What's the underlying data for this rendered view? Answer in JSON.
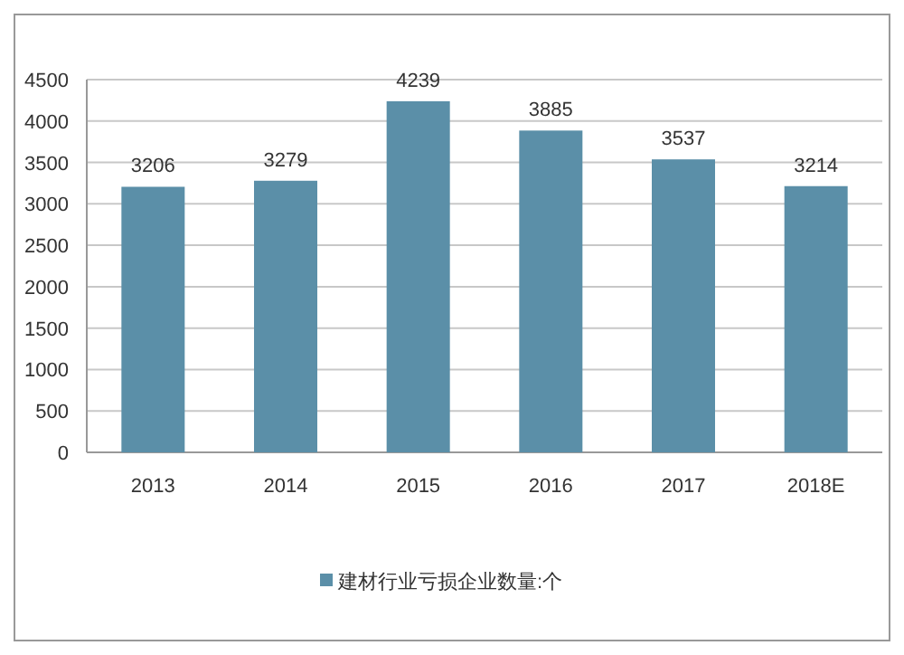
{
  "chart_data": {
    "type": "bar",
    "categories": [
      "2013",
      "2014",
      "2015",
      "2016",
      "2017",
      "2018E"
    ],
    "series": [
      {
        "name": "建材行业亏损企业数量:个",
        "color": "#5b8fa8",
        "values": [
          3206,
          3279,
          4239,
          3885,
          3537,
          3214
        ]
      }
    ],
    "ylim": [
      0,
      4500
    ],
    "yticks": [
      0,
      500,
      1000,
      1500,
      2000,
      2500,
      3000,
      3500,
      4000,
      4500
    ],
    "grid": "y",
    "legend": "bottom",
    "data_labels": true
  }
}
